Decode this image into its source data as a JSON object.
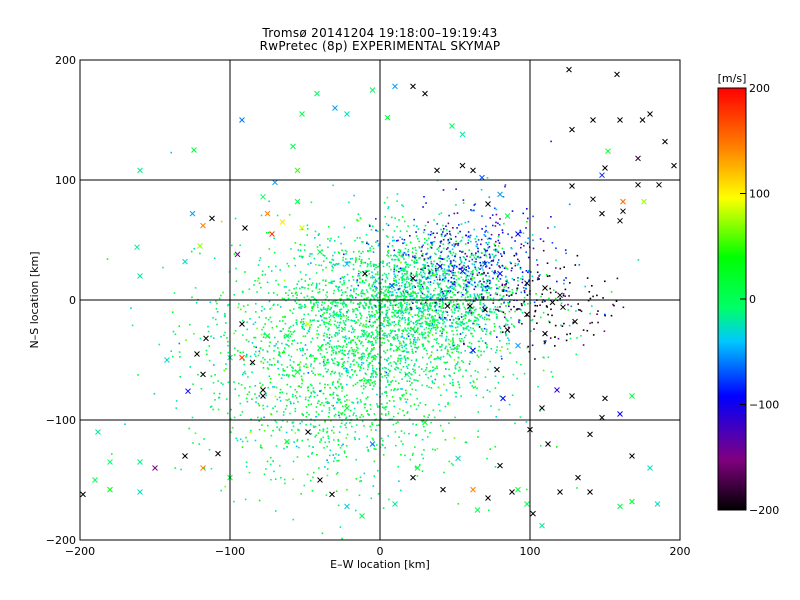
{
  "title": "Tromsø 20141204 19:18:00–19:19:43",
  "subtitle": "RwPretec (8p) EXPERIMENTAL SKYMAP",
  "chart_data": {
    "type": "scatter",
    "xlabel": "E–W location [km]",
    "ylabel": "N–S location [km]",
    "xlim": [
      -200,
      200
    ],
    "ylim": [
      -200,
      200
    ],
    "xticks": [
      -200,
      -100,
      0,
      100,
      200
    ],
    "yticks": [
      -200,
      -100,
      0,
      100,
      200
    ],
    "grid": true,
    "colorbar": {
      "label": "[m/s]",
      "range": [
        -200,
        200
      ],
      "ticks": [
        200,
        100,
        0,
        -100,
        -200
      ],
      "colors": [
        "#000000",
        "#800080",
        "#0000ff",
        "#00c8ff",
        "#00ff66",
        "#00ff00",
        "#ffff00",
        "#ff8000",
        "#ff0000"
      ]
    },
    "series": [
      {
        "marker": "x",
        "points": [
          [
            -160,
            108,
            -10
          ],
          [
            -124,
            125,
            20
          ],
          [
            -162,
            44,
            -20
          ],
          [
            -160,
            20,
            -20
          ],
          [
            -130,
            32,
            -30
          ],
          [
            -125,
            72,
            -60
          ],
          [
            -112,
            68,
            -200
          ],
          [
            -120,
            45,
            80
          ],
          [
            -118,
            62,
            150
          ],
          [
            -92,
            150,
            -70
          ],
          [
            -95,
            38,
            -140
          ],
          [
            -90,
            60,
            -200
          ],
          [
            -78,
            86,
            0
          ],
          [
            -70,
            98,
            -60
          ],
          [
            -55,
            108,
            60
          ],
          [
            -58,
            128,
            10
          ],
          [
            -52,
            155,
            10
          ],
          [
            -42,
            172,
            0
          ],
          [
            -30,
            160,
            -60
          ],
          [
            -22,
            155,
            -30
          ],
          [
            -5,
            175,
            0
          ],
          [
            5,
            152,
            20
          ],
          [
            10,
            178,
            -60
          ],
          [
            22,
            178,
            -200
          ],
          [
            30,
            172,
            -200
          ],
          [
            48,
            145,
            0
          ],
          [
            55,
            138,
            -20
          ],
          [
            38,
            108,
            -200
          ],
          [
            55,
            112,
            -200
          ],
          [
            62,
            108,
            -200
          ],
          [
            68,
            102,
            -80
          ],
          [
            80,
            88,
            -60
          ],
          [
            72,
            80,
            -200
          ],
          [
            85,
            70,
            10
          ],
          [
            92,
            55,
            -100
          ],
          [
            -75,
            72,
            150
          ],
          [
            -72,
            55,
            180
          ],
          [
            -55,
            82,
            10
          ],
          [
            -65,
            65,
            110
          ],
          [
            -52,
            60,
            90
          ],
          [
            -40,
            40,
            20
          ],
          [
            -22,
            30,
            -50
          ],
          [
            -10,
            22,
            -200
          ],
          [
            8,
            12,
            -80
          ],
          [
            22,
            18,
            -200
          ],
          [
            40,
            28,
            -100
          ],
          [
            55,
            24,
            -100
          ],
          [
            70,
            30,
            -80
          ],
          [
            80,
            22,
            -100
          ],
          [
            98,
            14,
            -200
          ],
          [
            110,
            10,
            -200
          ],
          [
            115,
            -2,
            -200
          ],
          [
            120,
            4,
            -200
          ],
          [
            98,
            -12,
            -200
          ],
          [
            122,
            -6,
            -200
          ],
          [
            142,
            84,
            -200
          ],
          [
            128,
            95,
            -200
          ],
          [
            150,
            110,
            -200
          ],
          [
            172,
            118,
            -180
          ],
          [
            172,
            96,
            -200
          ],
          [
            186,
            96,
            -200
          ],
          [
            196,
            112,
            -200
          ],
          [
            190,
            132,
            -200
          ],
          [
            162,
            82,
            160
          ],
          [
            176,
            82,
            80
          ],
          [
            180,
            155,
            -200
          ],
          [
            175,
            150,
            -200
          ],
          [
            160,
            150,
            -200
          ],
          [
            158,
            188,
            -200
          ],
          [
            126,
            192,
            -200
          ],
          [
            148,
            104,
            -90
          ],
          [
            152,
            124,
            40
          ],
          [
            142,
            150,
            -200
          ],
          [
            128,
            142,
            -200
          ],
          [
            148,
            72,
            -200
          ],
          [
            162,
            74,
            -200
          ],
          [
            160,
            66,
            -200
          ],
          [
            -118,
            -62,
            -200
          ],
          [
            -116,
            -32,
            -200
          ],
          [
            -100,
            -48,
            -20
          ],
          [
            -92,
            -48,
            180
          ],
          [
            -85,
            -52,
            -200
          ],
          [
            -78,
            -75,
            -200
          ],
          [
            -128,
            -76,
            -100
          ],
          [
            -122,
            -45,
            -200
          ],
          [
            -142,
            -50,
            -30
          ],
          [
            -188,
            -110,
            -20
          ],
          [
            -180,
            -135,
            0
          ],
          [
            -160,
            -160,
            -30
          ],
          [
            -130,
            -130,
            -200
          ],
          [
            -118,
            -140,
            150
          ],
          [
            -108,
            -128,
            -200
          ],
          [
            -100,
            -148,
            20
          ],
          [
            -150,
            -140,
            -150
          ],
          [
            -198,
            -162,
            -200
          ],
          [
            -190,
            -150,
            10
          ],
          [
            -180,
            -158,
            40
          ],
          [
            -160,
            -135,
            -10
          ],
          [
            -78,
            -80,
            -200
          ],
          [
            -62,
            -118,
            20
          ],
          [
            -48,
            -110,
            -200
          ],
          [
            -40,
            -150,
            -200
          ],
          [
            -32,
            -162,
            -200
          ],
          [
            -22,
            -172,
            -40
          ],
          [
            -12,
            -180,
            10
          ],
          [
            10,
            -170,
            -20
          ],
          [
            25,
            -140,
            20
          ],
          [
            42,
            -158,
            -200
          ],
          [
            62,
            -158,
            150
          ],
          [
            65,
            -175,
            10
          ],
          [
            72,
            -165,
            -200
          ],
          [
            88,
            -160,
            -200
          ],
          [
            102,
            -178,
            -200
          ],
          [
            128,
            -80,
            -200
          ],
          [
            118,
            -75,
            -120
          ],
          [
            108,
            -90,
            -200
          ],
          [
            148,
            -98,
            -200
          ],
          [
            140,
            -112,
            -200
          ],
          [
            160,
            -95,
            -100
          ],
          [
            150,
            -82,
            -200
          ],
          [
            168,
            -80,
            20
          ],
          [
            180,
            -140,
            -30
          ],
          [
            185,
            -170,
            -30
          ],
          [
            168,
            -168,
            30
          ],
          [
            160,
            -172,
            10
          ],
          [
            140,
            -160,
            -200
          ],
          [
            132,
            -148,
            -200
          ],
          [
            108,
            -188,
            -20
          ],
          [
            98,
            -170,
            10
          ],
          [
            92,
            -158,
            20
          ],
          [
            80,
            -138,
            -200
          ],
          [
            52,
            -132,
            -30
          ],
          [
            22,
            -148,
            -200
          ],
          [
            -5,
            -120,
            -70
          ],
          [
            30,
            -102,
            40
          ],
          [
            82,
            -82,
            -100
          ],
          [
            100,
            -108,
            -200
          ],
          [
            112,
            -120,
            -200
          ],
          [
            120,
            -160,
            -200
          ],
          [
            168,
            -130,
            -200
          ],
          [
            45,
            -5,
            -200
          ],
          [
            60,
            -5,
            -200
          ],
          [
            70,
            -8,
            -200
          ],
          [
            85,
            -25,
            -200
          ],
          [
            62,
            -42,
            -100
          ],
          [
            78,
            -58,
            -200
          ],
          [
            92,
            -38,
            -60
          ],
          [
            110,
            -28,
            -200
          ],
          [
            130,
            -18,
            -200
          ],
          [
            -10,
            -28,
            0
          ],
          [
            -30,
            -12,
            0
          ],
          [
            -48,
            -20,
            90
          ],
          [
            -62,
            -30,
            10
          ],
          [
            -40,
            -40,
            30
          ],
          [
            -8,
            -68,
            10
          ],
          [
            -22,
            -90,
            30
          ],
          [
            18,
            -62,
            0
          ],
          [
            12,
            -40,
            20
          ],
          [
            -55,
            -60,
            20
          ],
          [
            -75,
            -30,
            30
          ],
          [
            -92,
            -20,
            -200
          ]
        ]
      },
      {
        "marker": "dot",
        "cluster_centers": [
          [
            25,
            0,
            0
          ],
          [
            60,
            30,
            -100
          ],
          [
            -30,
            -60,
            10
          ],
          [
            -10,
            -20,
            0
          ],
          [
            110,
            -5,
            -200
          ]
        ]
      }
    ]
  }
}
